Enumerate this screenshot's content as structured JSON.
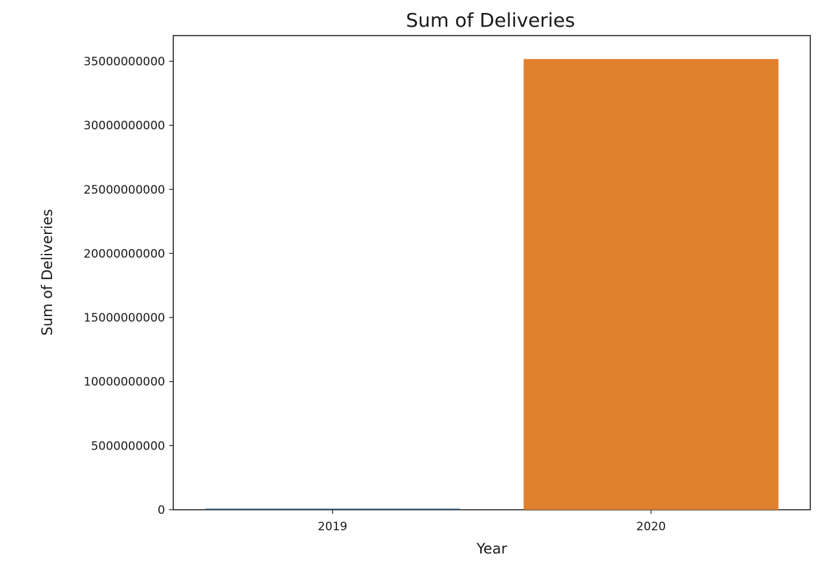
{
  "chart_data": {
    "type": "bar",
    "title": "Sum of Deliveries",
    "xlabel": "Year",
    "ylabel": "Sum of Deliveries",
    "categories": [
      "2019",
      "2020"
    ],
    "values": [
      80000000,
      35170000000
    ],
    "colors": [
      "#1f4e79",
      "#e0802e"
    ],
    "ylim": [
      0,
      37000000000
    ],
    "yticks": [
      0,
      5000000000,
      10000000000,
      15000000000,
      20000000000,
      25000000000,
      30000000000,
      35000000000
    ],
    "ytick_labels": [
      "0",
      "5000000000",
      "10000000000",
      "15000000000",
      "20000000000",
      "25000000000",
      "30000000000",
      "35000000000"
    ],
    "grid": false,
    "legend": "none"
  }
}
